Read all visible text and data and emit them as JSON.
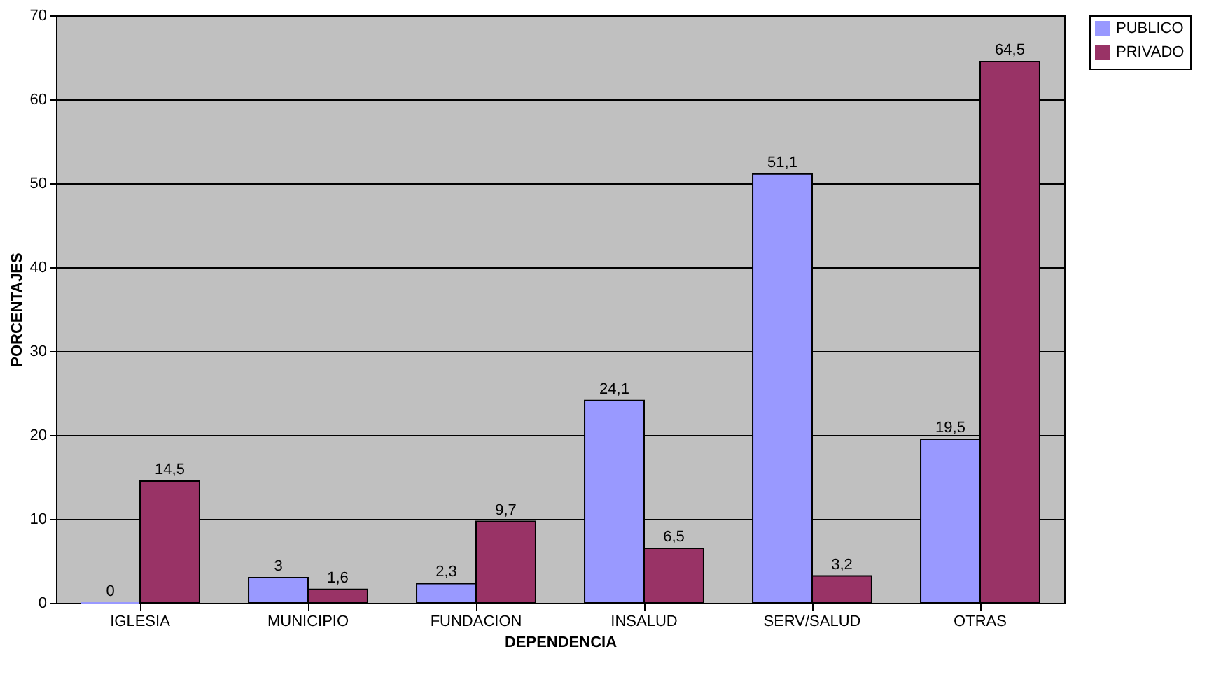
{
  "chart_data": {
    "type": "bar",
    "xlabel": "DEPENDENCIA",
    "ylabel": "PORCENTAJES",
    "categories": [
      "IGLESIA",
      "MUNICIPIO",
      "FUNDACION",
      "INSALUD",
      "SERV/SALUD",
      "OTRAS"
    ],
    "series": [
      {
        "name": "PUBLICO",
        "color": "#9999ff",
        "values": [
          0,
          3,
          2.3,
          24.1,
          51.1,
          19.5
        ],
        "value_labels": [
          "0",
          "3",
          "2,3",
          "24,1",
          "51,1",
          "19,5"
        ]
      },
      {
        "name": "PRIVADO",
        "color": "#993366",
        "values": [
          14.5,
          1.6,
          9.7,
          6.5,
          3.2,
          64.5
        ],
        "value_labels": [
          "14,5",
          "1,6",
          "9,7",
          "6,5",
          "3,2",
          "64,5"
        ]
      }
    ],
    "ylim": [
      0,
      70
    ],
    "yticks": [
      0,
      10,
      20,
      30,
      40,
      50,
      60,
      70
    ],
    "grid": "y",
    "legend": "right"
  }
}
